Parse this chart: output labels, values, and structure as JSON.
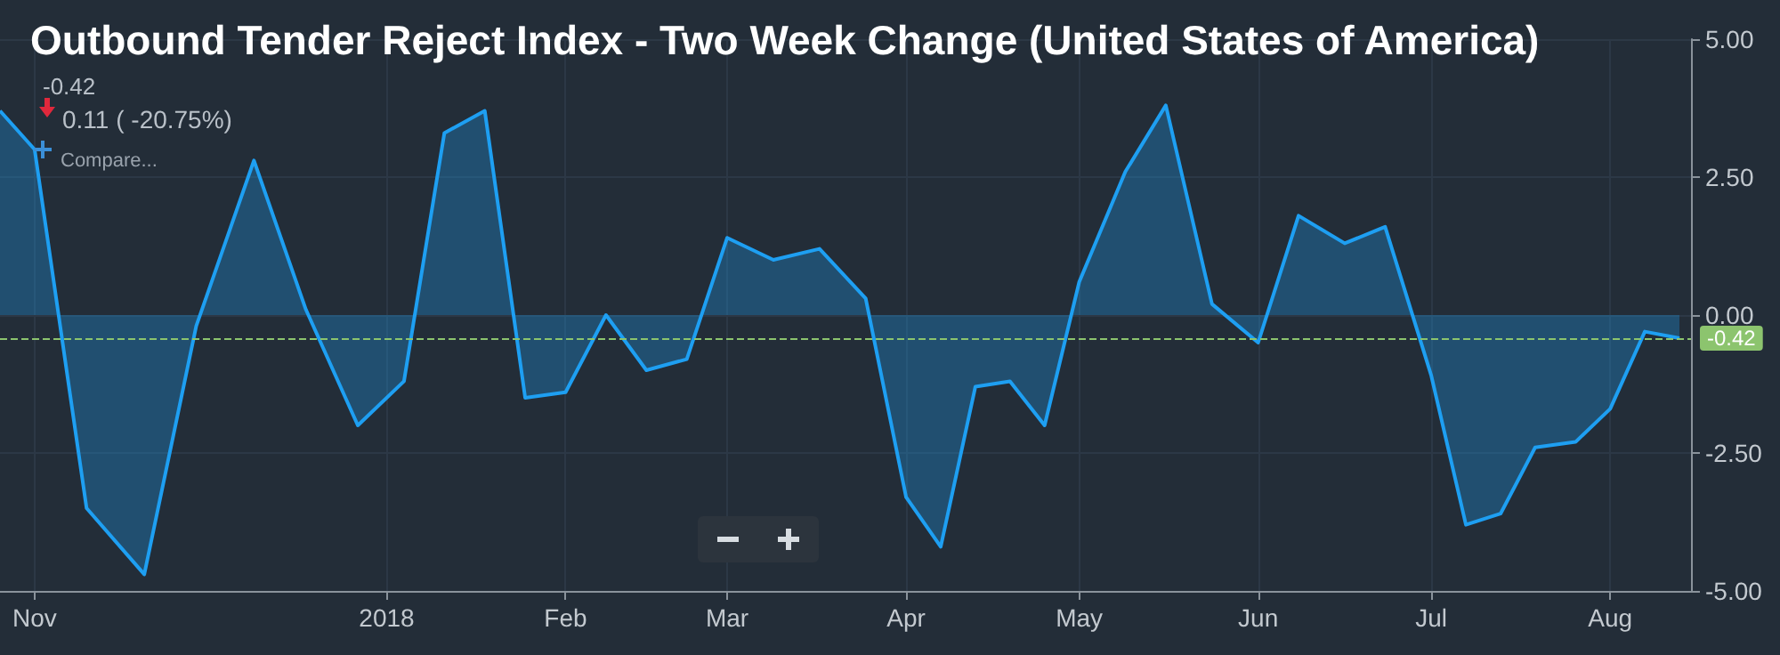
{
  "chart_data": {
    "type": "area",
    "title": "Outbound Tender Reject Index - Two Week Change (United States of America)",
    "x": [
      "2017-10-26",
      "2017-11-01",
      "2017-11-10",
      "2017-11-20",
      "2017-11-29",
      "2017-12-09",
      "2017-12-18",
      "2017-12-27",
      "2018-01-04",
      "2018-01-11",
      "2018-01-18",
      "2018-01-25",
      "2018-02-01",
      "2018-02-08",
      "2018-02-15",
      "2018-02-22",
      "2018-03-01",
      "2018-03-09",
      "2018-03-17",
      "2018-03-25",
      "2018-04-01",
      "2018-04-07",
      "2018-04-13",
      "2018-04-19",
      "2018-04-25",
      "2018-05-01",
      "2018-05-09",
      "2018-05-16",
      "2018-05-24",
      "2018-06-01",
      "2018-06-08",
      "2018-06-16",
      "2018-06-23",
      "2018-07-01",
      "2018-07-07",
      "2018-07-13",
      "2018-07-19",
      "2018-07-26",
      "2018-08-01",
      "2018-08-07",
      "2018-08-13"
    ],
    "series": [
      {
        "color": "#1e9ff2",
        "values": [
          3.7,
          3.0,
          -3.5,
          -4.7,
          -0.2,
          2.8,
          0.1,
          -2.0,
          -1.2,
          3.3,
          3.7,
          -1.5,
          -1.4,
          0.0,
          -1.0,
          -0.8,
          1.4,
          1.0,
          1.2,
          0.3,
          -3.3,
          -4.2,
          -1.3,
          -1.2,
          -2.0,
          0.6,
          2.6,
          3.8,
          0.2,
          -0.5,
          1.8,
          1.3,
          1.6,
          -1.1,
          -3.8,
          -3.6,
          -2.4,
          -2.3,
          -1.7,
          -0.3,
          -0.42
        ]
      }
    ],
    "xlim": [
      "2017-10-26",
      "2018-08-15"
    ],
    "xticks": [
      {
        "value": "2017-11-01",
        "label": "Nov"
      },
      {
        "value": "2018-01-01",
        "label": "2018"
      },
      {
        "value": "2018-02-01",
        "label": "Feb"
      },
      {
        "value": "2018-03-01",
        "label": "Mar"
      },
      {
        "value": "2018-04-01",
        "label": "Apr"
      },
      {
        "value": "2018-05-01",
        "label": "May"
      },
      {
        "value": "2018-06-01",
        "label": "Jun"
      },
      {
        "value": "2018-07-01",
        "label": "Jul"
      },
      {
        "value": "2018-08-01",
        "label": "Aug"
      }
    ],
    "ylim": [
      -5,
      5
    ],
    "yticks": [
      {
        "value": -5,
        "label": "-5.00"
      },
      {
        "value": -2.5,
        "label": "-2.50"
      },
      {
        "value": 0,
        "label": "0.00"
      },
      {
        "value": 2.5,
        "label": "2.50"
      },
      {
        "value": 5,
        "label": "5.00"
      }
    ],
    "ref_lines": [
      {
        "axis": "y",
        "value": -0.42,
        "label": "-0.42",
        "color": "#8cc46e",
        "line_style": "dashed"
      }
    ],
    "annotations": [
      "-0.42",
      "0.11 ( -20.75%)",
      "Compare..."
    ],
    "grid": true,
    "marker": "none",
    "line_style": "solid"
  }
}
